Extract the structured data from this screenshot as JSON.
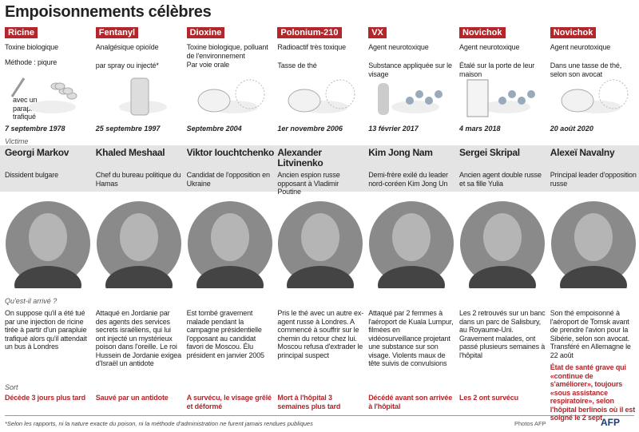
{
  "title": "Empoisonnements célèbres",
  "labels": {
    "victim": "Victime",
    "what": "Qu'est-il arrivé ?",
    "fate": "Sort"
  },
  "columns": [
    {
      "poison": "Ricine",
      "description": "Toxine biologique",
      "method": "Méthode : piqure",
      "caption": "avec un parapluie trafiqué",
      "date": "7 septembre 1978",
      "name": "Georgi Markov",
      "role": "Dissident bulgare",
      "story": "On suppose qu'il a été tué par une injection de ricine tirée à partir d'un parapluie trafiqué alors qu'il attendait un bus à Londres",
      "fate": "Décède 3 jours plus tard"
    },
    {
      "poison": "Fentanyl",
      "description": "Analgésique opioïde",
      "method": "par spray ou injecté*",
      "date": "25 septembre 1997",
      "name": "Khaled Meshaal",
      "role": "Chef du bureau politique du Hamas",
      "story": "Attaqué en Jordanie par des agents des services secrets israéliens, qui lui ont injecté un mystérieux poison dans l'oreille. Le roi Hussein de Jordanie exigea d'Israël un antidote",
      "fate": "Sauvé par un antidote"
    },
    {
      "poison": "Dioxine",
      "description": "Toxine biologique, polluant de l'environnement",
      "method": "Par voie orale",
      "date": "Septembre 2004",
      "name": "Viktor Iouchtchenko",
      "role": "Candidat de l'opposition en Ukraine",
      "story": "Est tombé gravement malade pendant la campagne présidentielle l'opposant au candidat favori de Moscou. Élu président en janvier 2005",
      "fate": "A survécu, le visage grêlé et déformé"
    },
    {
      "poison": "Polonium-210",
      "description": "Radioactif très toxique",
      "method": "Tasse de thé",
      "date": "1er novembre 2006",
      "name": "Alexander Litvinenko",
      "role": "Ancien espion russe opposant à Vladimir Poutine",
      "story": "Pris le thé avec un autre ex-agent russe à Londres. A commencé à souffrir sur le chemin du retour chez lui. Moscou refusa d'extrader le principal suspect",
      "fate": "Mort à l'hôpital 3 semaines plus tard"
    },
    {
      "poison": "VX",
      "description": "Agent neurotoxique",
      "method": "Substance appliquée sur le visage",
      "date": "13 février 2017",
      "name": "Kim Jong Nam",
      "role": "Demi-frère exilé du leader nord-coréen Kim Jong Un",
      "story": "Attaqué par 2 femmes à l'aéroport de Kuala Lumpur, filmées en vidéosurveillance projetant une substance sur son visage. Violents maux de tête suivis de convulsions",
      "fate": "Décédé avant son arrivée à l'hôpital"
    },
    {
      "poison": "Novichok",
      "description": "Agent neurotoxique",
      "method": "Étalé sur la porte de leur maison",
      "date": "4 mars 2018",
      "name": "Sergei Skripal",
      "role": "Ancien agent double russe et sa fille Yulia",
      "story": "Les 2 retrouvés sur un banc dans un parc de Salisbury, au Royaume-Uni. Gravement malades, ont passé plusieurs semaines à l'hôpital",
      "fate": "Les 2 ont survécu"
    },
    {
      "poison": "Novichok",
      "description": "Agent neurotoxique",
      "method": "Dans une tasse de thé, selon son avocat",
      "date": "20 août 2020",
      "name": "Alexeï Navalny",
      "role": "Principal leader d'opposition russe",
      "story": "Son thé empoisonné à l'aéroport de Tomsk avant de prendre l'avion pour la Sibérie, selon son avocat. Transféré en Allemagne le 22 août",
      "fate": "État de santé grave qui «continue de s'améliorer», toujours «sous assistance respiratoire», selon l'hôpital berlinois où il est soigné le 2 sept"
    }
  ],
  "footnote": "*Selon les rapports, ni la nature exacte du poison, ni la méthode d'administration ne furent jamais rendues publiques",
  "credit": "Photos AFP",
  "logo": "AFP"
}
